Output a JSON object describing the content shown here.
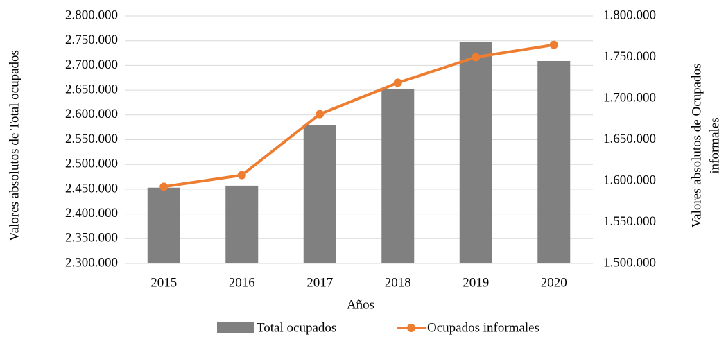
{
  "chart_data": {
    "type": "bar_line",
    "categories": [
      "2015",
      "2016",
      "2017",
      "2018",
      "2019",
      "2020"
    ],
    "series": [
      {
        "name": "Total ocupados",
        "type": "bar",
        "color": "#808080",
        "values": [
          2453000,
          2457000,
          2579000,
          2653000,
          2748000,
          2709000
        ]
      },
      {
        "name": "Ocupados informales",
        "type": "line",
        "axis": "y2",
        "color": "#ed7d31",
        "values": [
          1593000,
          1607000,
          1681000,
          1719000,
          1750000,
          1765000
        ]
      }
    ],
    "xlabel": "Años",
    "ylabel": "Valores absolutos de Total ocupados",
    "y2label": [
      "Valores absolutos de Ocupados",
      "informales"
    ],
    "ylim": [
      2300000,
      2800000
    ],
    "yticks": [
      {
        "value": 2300000,
        "label": "2.300.000"
      },
      {
        "value": 2350000,
        "label": "2.350.000"
      },
      {
        "value": 2400000,
        "label": "2.400.000"
      },
      {
        "value": 2450000,
        "label": "2.450.000"
      },
      {
        "value": 2500000,
        "label": "2.500.000"
      },
      {
        "value": 2550000,
        "label": "2.550.000"
      },
      {
        "value": 2600000,
        "label": "2.600.000"
      },
      {
        "value": 2650000,
        "label": "2.650.000"
      },
      {
        "value": 2700000,
        "label": "2.700.000"
      },
      {
        "value": 2750000,
        "label": "2.750.000"
      },
      {
        "value": 2800000,
        "label": "2.800.000"
      }
    ],
    "y2lim": [
      1500000,
      1800000
    ],
    "y2ticks": [
      {
        "value": 1500000,
        "label": "1.500.000"
      },
      {
        "value": 1550000,
        "label": "1.550.000"
      },
      {
        "value": 1600000,
        "label": "1.600.000"
      },
      {
        "value": 1650000,
        "label": "1.650.000"
      },
      {
        "value": 1700000,
        "label": "1.700.000"
      },
      {
        "value": 1750000,
        "label": "1.750.000"
      },
      {
        "value": 1800000,
        "label": "1.800.000"
      }
    ],
    "grid": true,
    "legend": "bottom"
  }
}
